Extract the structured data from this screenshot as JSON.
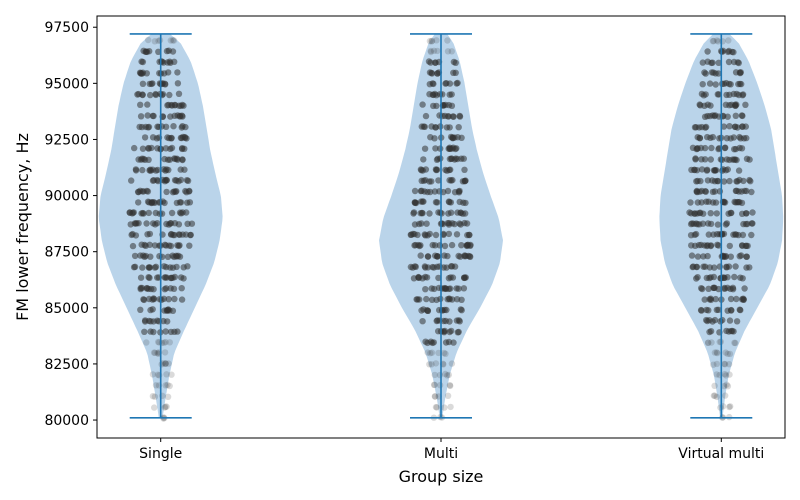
{
  "chart_data": {
    "type": "violin",
    "title": "",
    "xlabel": "Group size",
    "ylabel": "FM lower frequency, Hz",
    "categories": [
      "Single",
      "Multi",
      "Virtual multi"
    ],
    "ylim": [
      79200,
      98000
    ],
    "yticks": [
      80000,
      82500,
      85000,
      87500,
      90000,
      92500,
      95000,
      97500
    ],
    "ytick_labels": [
      "80000",
      "82500",
      "85000",
      "87500",
      "90000",
      "92500",
      "95000",
      "97500"
    ],
    "grid": false,
    "series": [
      {
        "category": "Single",
        "min": 80100,
        "max": 97200,
        "density_profile": [
          [
            80100,
            0.03
          ],
          [
            81000,
            0.08
          ],
          [
            82000,
            0.14
          ],
          [
            83000,
            0.22
          ],
          [
            84000,
            0.38
          ],
          [
            85000,
            0.55
          ],
          [
            86000,
            0.72
          ],
          [
            87000,
            0.86
          ],
          [
            88000,
            0.95
          ],
          [
            89000,
            1.0
          ],
          [
            90000,
            0.97
          ],
          [
            91000,
            0.88
          ],
          [
            92000,
            0.8
          ],
          [
            93000,
            0.74
          ],
          [
            94000,
            0.68
          ],
          [
            95000,
            0.6
          ],
          [
            96000,
            0.48
          ],
          [
            96800,
            0.32
          ],
          [
            97200,
            0.15
          ]
        ]
      },
      {
        "category": "Multi",
        "min": 80100,
        "max": 97200,
        "density_profile": [
          [
            80100,
            0.02
          ],
          [
            81000,
            0.07
          ],
          [
            82000,
            0.14
          ],
          [
            83000,
            0.25
          ],
          [
            84000,
            0.42
          ],
          [
            85000,
            0.63
          ],
          [
            86000,
            0.82
          ],
          [
            87000,
            0.95
          ],
          [
            88000,
            1.0
          ],
          [
            89000,
            0.93
          ],
          [
            90000,
            0.8
          ],
          [
            91000,
            0.68
          ],
          [
            92000,
            0.58
          ],
          [
            93000,
            0.5
          ],
          [
            94000,
            0.44
          ],
          [
            95000,
            0.38
          ],
          [
            96000,
            0.3
          ],
          [
            96800,
            0.2
          ],
          [
            97200,
            0.1
          ]
        ]
      },
      {
        "category": "Virtual multi",
        "min": 80100,
        "max": 97200,
        "density_profile": [
          [
            80100,
            0.02
          ],
          [
            81000,
            0.06
          ],
          [
            82000,
            0.12
          ],
          [
            83000,
            0.22
          ],
          [
            84000,
            0.38
          ],
          [
            85000,
            0.58
          ],
          [
            86000,
            0.78
          ],
          [
            87000,
            0.91
          ],
          [
            88000,
            0.98
          ],
          [
            89000,
            1.0
          ],
          [
            90000,
            0.98
          ],
          [
            91000,
            0.92
          ],
          [
            92000,
            0.86
          ],
          [
            93000,
            0.8
          ],
          [
            94000,
            0.7
          ],
          [
            95000,
            0.58
          ],
          [
            96000,
            0.44
          ],
          [
            96800,
            0.28
          ],
          [
            97200,
            0.13
          ]
        ]
      }
    ],
    "colors": {
      "violin_fill": "#aecde6",
      "violin_edge": "#1f77b4",
      "points": "#333333",
      "axis": "#000000"
    }
  }
}
